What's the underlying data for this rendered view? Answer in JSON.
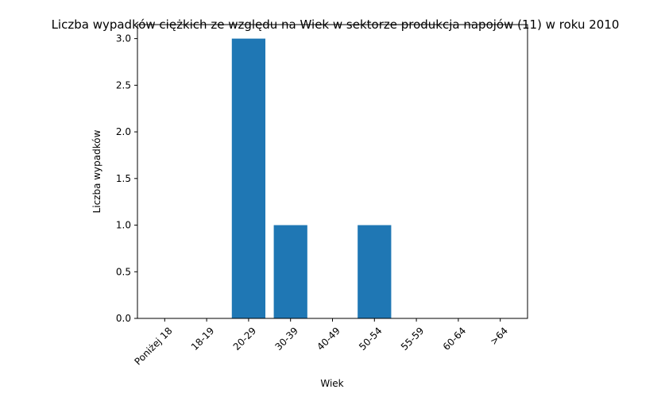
{
  "chart_data": {
    "type": "bar",
    "title": "Liczba wypadków ciężkich ze względu na Wiek w sektorze produkcja napojów  (11)   w roku 2010",
    "xlabel": "Wiek",
    "ylabel": "Liczba wypadków",
    "categories": [
      "Poniżej 18",
      "18-19",
      "20-29",
      "30-39",
      "40-49",
      "50-54",
      "55-59",
      "60-64",
      ">64"
    ],
    "values": [
      0,
      0,
      3,
      1,
      0,
      1,
      0,
      0,
      0
    ],
    "ylim": [
      0,
      3.15
    ],
    "yticks": [
      0.0,
      0.5,
      1.0,
      1.5,
      2.0,
      2.5,
      3.0
    ],
    "bar_color": "#1f77b4",
    "grid": false,
    "legend": "none"
  }
}
